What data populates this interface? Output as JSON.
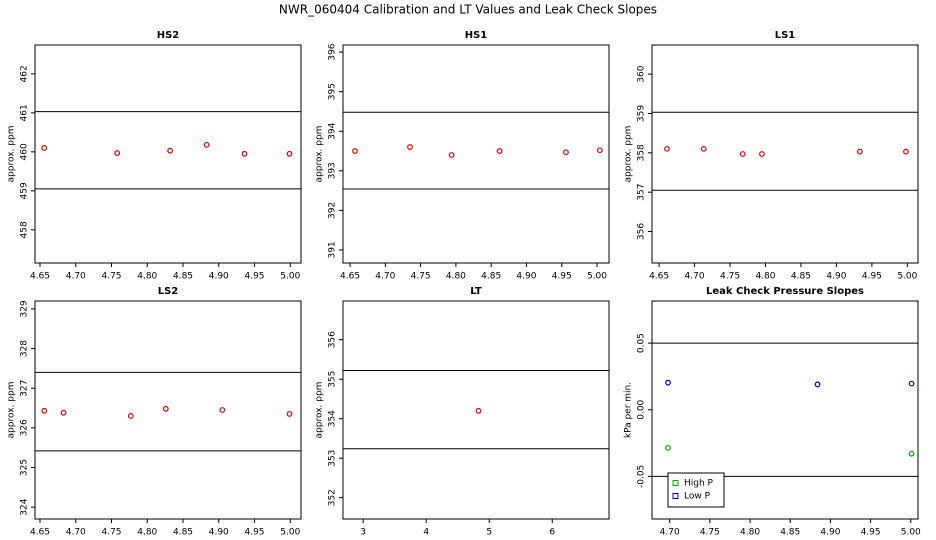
{
  "title": "NWR_060404  Calibration and LT Values and Leak Check Slopes",
  "chart_data": [
    {
      "type": "scatter",
      "title": "HS2",
      "y_label": "approx. ppm",
      "color": "#dd0000",
      "x": [
        4.656,
        4.758,
        4.832,
        4.883,
        4.936,
        4.999
      ],
      "values": [
        460.1,
        459.97,
        460.03,
        460.18,
        459.95,
        459.95
      ],
      "xlim": [
        4.643,
        5.015
      ],
      "ylim": [
        457.15,
        462.74
      ],
      "xticks": [
        4.65,
        {
          "value": 4.7,
          "label": "4.70"
        },
        4.75,
        {
          "value": 4.8,
          "label": "4.80"
        },
        4.85,
        {
          "value": 4.9,
          "label": "4.90"
        },
        4.95,
        {
          "value": 5,
          "label": "5.00"
        }
      ],
      "yticks": [
        458,
        459,
        460,
        461,
        462
      ],
      "hlines": [
        461.03,
        459.05
      ]
    },
    {
      "type": "scatter",
      "title": "HS1",
      "y_label": "approx. ppm",
      "color": "#dd0000",
      "x": [
        4.657,
        4.735,
        4.794,
        4.862,
        4.956,
        5.004
      ],
      "values": [
        393.5,
        393.6,
        393.4,
        393.5,
        393.47,
        393.52
      ],
      "xlim": [
        4.64,
        5.017
      ],
      "ylim": [
        390.67,
        396.18
      ],
      "xticks": [
        4.65,
        {
          "value": 4.7,
          "label": "4.70"
        },
        4.75,
        {
          "value": 4.8,
          "label": "4.80"
        },
        4.85,
        {
          "value": 4.9,
          "label": "4.90"
        },
        4.95,
        {
          "value": 5,
          "label": "5.00"
        }
      ],
      "yticks": [
        391,
        392,
        393,
        394,
        395,
        396
      ],
      "hlines": [
        394.48,
        392.54
      ]
    },
    {
      "type": "scatter",
      "title": "LS1",
      "y_label": "approx. ppm",
      "color": "#dd0000",
      "x": [
        4.661,
        4.713,
        4.768,
        4.795,
        4.933,
        4.998
      ],
      "values": [
        358.1,
        358.1,
        357.97,
        357.97,
        358.03,
        358.03
      ],
      "xlim": [
        4.64,
        5.015
      ],
      "ylim": [
        355.2,
        360.74
      ],
      "xticks": [
        4.65,
        {
          "value": 4.7,
          "label": "4.70"
        },
        4.75,
        {
          "value": 4.8,
          "label": "4.80"
        },
        4.85,
        {
          "value": 4.9,
          "label": "4.90"
        },
        4.95,
        {
          "value": 5,
          "label": "5.00"
        }
      ],
      "yticks": [
        356,
        357,
        358,
        359,
        360
      ],
      "hlines": [
        359.03,
        357.05
      ]
    },
    {
      "type": "scatter",
      "title": "LS2",
      "y_label": "approx. ppm",
      "color": "#dd0000",
      "x": [
        4.656,
        4.683,
        4.777,
        4.826,
        4.905,
        4.999
      ],
      "values": [
        326.43,
        326.38,
        326.3,
        326.48,
        326.45,
        326.35
      ],
      "xlim": [
        4.643,
        5.015
      ],
      "ylim": [
        323.7,
        329.2
      ],
      "xticks": [
        4.65,
        {
          "value": 4.7,
          "label": "4.70"
        },
        4.75,
        {
          "value": 4.8,
          "label": "4.80"
        },
        4.85,
        {
          "value": 4.9,
          "label": "4.90"
        },
        4.95,
        {
          "value": 5,
          "label": "5.00"
        }
      ],
      "yticks": [
        324,
        325,
        326,
        327,
        328,
        329
      ],
      "hlines": [
        327.4,
        325.42
      ]
    },
    {
      "type": "scatter",
      "title": "LT",
      "y_label": "approx. ppm",
      "color": "#dd0000",
      "x": [
        4.83
      ],
      "values": [
        354.2
      ],
      "xlim": [
        2.68,
        6.9
      ],
      "ylim": [
        351.46,
        356.98
      ],
      "xticks": [
        3,
        4,
        5,
        6
      ],
      "yticks": [
        352,
        353,
        354,
        355,
        356
      ],
      "hlines": [
        355.22,
        353.24
      ]
    },
    {
      "type": "scatter",
      "title": "Leak Check Pressure Slopes",
      "y_label": "kPa per min.",
      "series": [
        {
          "name": "High P",
          "color": "#00aa00",
          "x": [
            4.698,
            5.001
          ],
          "values": [
            -0.0286,
            -0.033
          ]
        },
        {
          "name": "Low P",
          "color": "#0000cc",
          "x": [
            4.698,
            4.884,
            5.001
          ],
          "values": [
            0.0203,
            0.019,
            0.0196
          ]
        }
      ],
      "xlim": [
        4.678,
        5.009
      ],
      "ylim": [
        -0.082,
        0.0816
      ],
      "xticks": [
        {
          "value": 4.7,
          "label": "4.70"
        },
        4.75,
        {
          "value": 4.8,
          "label": "4.80"
        },
        4.85,
        {
          "value": 4.9,
          "label": "4.90"
        },
        4.95,
        {
          "value": 5,
          "label": "5.00"
        }
      ],
      "yticks": [
        -0.05,
        {
          "value": 0,
          "label": "0.00"
        },
        0.05
      ],
      "hlines": [
        0.05,
        -0.05
      ],
      "legend": "bottom-left"
    }
  ]
}
